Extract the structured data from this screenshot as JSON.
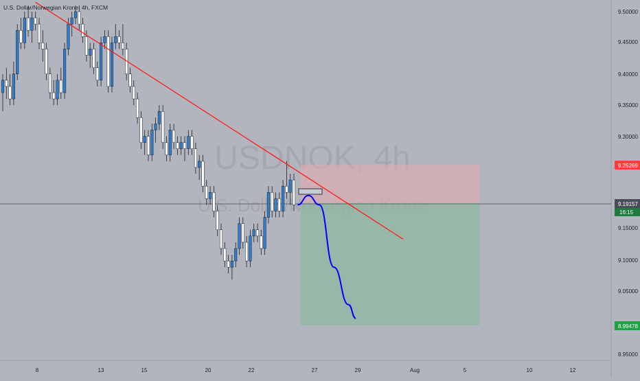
{
  "header": {
    "symbol_title": "U.S. Dollar/Norwegian Krone, 4h, FXCM"
  },
  "watermark": {
    "ticker": "USDNOK, 4h",
    "name": "U.S. Dollar/Norwegian Krone"
  },
  "price_axis": {
    "ticks": [
      "9.50000",
      "9.45000",
      "9.40000",
      "9.35000",
      "9.30000",
      "9.15000",
      "9.10000",
      "9.05000",
      "8.95000"
    ],
    "stop_label": "9.25269",
    "current_label": "9.19157",
    "countdown": "16:15",
    "target_label": "8.99478"
  },
  "time_axis": {
    "labels": [
      "8",
      "13",
      "15",
      "20",
      "22",
      "27",
      "29",
      "Aug",
      "5",
      "10",
      "12"
    ]
  },
  "colors": {
    "background": "#b2b5be",
    "bull": "#2e7fcf",
    "bear": "#ffffff",
    "trendline": "#ff1a1a",
    "projection": "#0000ff",
    "stop_zone": "#e8a9ad",
    "target_zone": "#8fb8a0",
    "stop_badge": "#ff3b3b",
    "target_badge": "#1ea045",
    "current_badge": "#4a4e5a",
    "countdown_badge": "#1f7a3d"
  },
  "chart_data": {
    "type": "candlestick",
    "symbol": "USDNOK",
    "timeframe": "4h",
    "price_range": [
      8.92,
      9.51
    ],
    "trendline": [
      {
        "bar": 9,
        "price": 9.515
      },
      {
        "bar": 110,
        "price": 9.135
      }
    ],
    "position": {
      "type": "short",
      "start_bar": 81,
      "end_bar": 130,
      "entry": 9.19157,
      "stop": 9.25269,
      "target": 8.99478
    },
    "projection_path": [
      {
        "bar": 81,
        "price": 9.19
      },
      {
        "bar": 84,
        "price": 9.205
      },
      {
        "bar": 87,
        "price": 9.19
      },
      {
        "bar": 91,
        "price": 9.09
      },
      {
        "bar": 95,
        "price": 9.03
      },
      {
        "bar": 97,
        "price": 9.008
      }
    ],
    "candles": [
      [
        9.37,
        9.4,
        9.34,
        9.39
      ],
      [
        9.39,
        9.41,
        9.36,
        9.38
      ],
      [
        9.38,
        9.4,
        9.35,
        9.36
      ],
      [
        9.36,
        9.42,
        9.35,
        9.4
      ],
      [
        9.4,
        9.48,
        9.39,
        9.47
      ],
      [
        9.47,
        9.49,
        9.44,
        9.45
      ],
      [
        9.45,
        9.5,
        9.44,
        9.49
      ],
      [
        9.49,
        9.51,
        9.46,
        9.47
      ],
      [
        9.47,
        9.5,
        9.45,
        9.49
      ],
      [
        9.49,
        9.5,
        9.47,
        9.48
      ],
      [
        9.48,
        9.49,
        9.44,
        9.45
      ],
      [
        9.45,
        9.47,
        9.42,
        9.44
      ],
      [
        9.44,
        9.45,
        9.39,
        9.4
      ],
      [
        9.4,
        9.41,
        9.36,
        9.37
      ],
      [
        9.37,
        9.39,
        9.35,
        9.36
      ],
      [
        9.36,
        9.4,
        9.35,
        9.39
      ],
      [
        9.39,
        9.41,
        9.36,
        9.37
      ],
      [
        9.37,
        9.45,
        9.36,
        9.44
      ],
      [
        9.44,
        9.49,
        9.43,
        9.48
      ],
      [
        9.48,
        9.5,
        9.46,
        9.49
      ],
      [
        9.49,
        9.51,
        9.48,
        9.5
      ],
      [
        9.5,
        9.51,
        9.47,
        9.48
      ],
      [
        9.48,
        9.49,
        9.45,
        9.46
      ],
      [
        9.46,
        9.47,
        9.42,
        9.43
      ],
      [
        9.43,
        9.45,
        9.41,
        9.44
      ],
      [
        9.44,
        9.45,
        9.4,
        9.41
      ],
      [
        9.41,
        9.42,
        9.38,
        9.39
      ],
      [
        9.39,
        9.46,
        9.38,
        9.45
      ],
      [
        9.45,
        9.47,
        9.44,
        9.46
      ],
      [
        9.46,
        9.47,
        9.37,
        9.38
      ],
      [
        9.38,
        9.46,
        9.37,
        9.45
      ],
      [
        9.45,
        9.48,
        9.44,
        9.46
      ],
      [
        9.46,
        9.47,
        9.44,
        9.45
      ],
      [
        9.45,
        9.48,
        9.43,
        9.44
      ],
      [
        9.44,
        9.45,
        9.39,
        9.4
      ],
      [
        9.4,
        9.41,
        9.37,
        9.38
      ],
      [
        9.38,
        9.39,
        9.35,
        9.36
      ],
      [
        9.36,
        9.37,
        9.32,
        9.33
      ],
      [
        9.33,
        9.34,
        9.28,
        9.29
      ],
      [
        9.29,
        9.31,
        9.27,
        9.3
      ],
      [
        9.3,
        9.31,
        9.26,
        9.27
      ],
      [
        9.27,
        9.32,
        9.26,
        9.31
      ],
      [
        9.31,
        9.33,
        9.29,
        9.32
      ],
      [
        9.32,
        9.35,
        9.31,
        9.34
      ],
      [
        9.34,
        9.35,
        9.28,
        9.29
      ],
      [
        9.29,
        9.3,
        9.26,
        9.27
      ],
      [
        9.27,
        9.32,
        9.26,
        9.31
      ],
      [
        9.31,
        9.32,
        9.28,
        9.29
      ],
      [
        9.29,
        9.3,
        9.27,
        9.28
      ],
      [
        9.28,
        9.3,
        9.27,
        9.29
      ],
      [
        9.29,
        9.3,
        9.26,
        9.28
      ],
      [
        9.28,
        9.31,
        9.27,
        9.3
      ],
      [
        9.3,
        9.31,
        9.27,
        9.28
      ],
      [
        9.28,
        9.29,
        9.24,
        9.25
      ],
      [
        9.25,
        9.27,
        9.23,
        9.26
      ],
      [
        9.26,
        9.27,
        9.21,
        9.22
      ],
      [
        9.22,
        9.23,
        9.19,
        9.2
      ],
      [
        9.2,
        9.22,
        9.19,
        9.21
      ],
      [
        9.21,
        9.22,
        9.17,
        9.18
      ],
      [
        9.18,
        9.19,
        9.14,
        9.15
      ],
      [
        9.15,
        9.16,
        9.11,
        9.12
      ],
      [
        9.12,
        9.13,
        9.09,
        9.1
      ],
      [
        9.1,
        9.11,
        9.08,
        9.09
      ],
      [
        9.09,
        9.11,
        9.07,
        9.1
      ],
      [
        9.1,
        9.13,
        9.09,
        9.12
      ],
      [
        9.12,
        9.17,
        9.11,
        9.16
      ],
      [
        9.16,
        9.17,
        9.12,
        9.13
      ],
      [
        9.13,
        9.14,
        9.09,
        9.1
      ],
      [
        9.1,
        9.15,
        9.09,
        9.14
      ],
      [
        9.14,
        9.16,
        9.13,
        9.15
      ],
      [
        9.15,
        9.16,
        9.13,
        9.14
      ],
      [
        9.14,
        9.15,
        9.11,
        9.12
      ],
      [
        9.12,
        9.18,
        9.11,
        9.17
      ],
      [
        9.17,
        9.22,
        9.16,
        9.21
      ],
      [
        9.21,
        9.22,
        9.17,
        9.18
      ],
      [
        9.18,
        9.21,
        9.17,
        9.2
      ],
      [
        9.2,
        9.21,
        9.17,
        9.18
      ],
      [
        9.18,
        9.23,
        9.17,
        9.22
      ],
      [
        9.22,
        9.26,
        9.2,
        9.21
      ],
      [
        9.21,
        9.24,
        9.19,
        9.23
      ],
      [
        9.23,
        9.24,
        9.18,
        9.19
      ]
    ]
  }
}
